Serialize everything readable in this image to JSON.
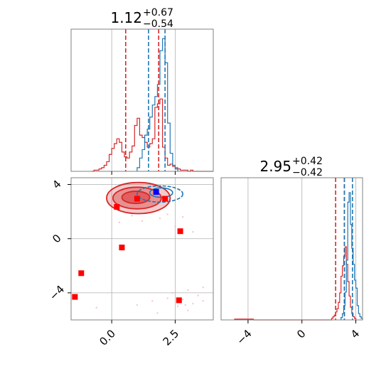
{
  "chart_data": {
    "type": "corner",
    "colors": {
      "series_red": "#d62728",
      "series_blue": "#1f77b4",
      "marker_red": "#ff0000",
      "marker_blue": "#0000ff",
      "grid": "#b0b0b0",
      "axes_frame": "#808080"
    },
    "panels": [
      {
        "id": "marginal-x",
        "type": "histogram",
        "title": {
          "value": "1.12",
          "sup": "+0.67",
          "sub": "−0.54"
        },
        "xlim": [
          -1.6,
          4.0
        ],
        "xticks": [
          0.0,
          2.5
        ],
        "xticklabels": [
          "0.0",
          "2.5"
        ],
        "grid": true,
        "red_quantile_lines": [
          0.55,
          1.85
        ],
        "blue_quantile_lines": [
          1.45,
          2.1
        ],
        "series": [
          {
            "name": "red",
            "color": "#d62728",
            "bin_edges": [
              -0.8,
              -0.7,
              -0.6,
              -0.5,
              -0.4,
              -0.3,
              -0.2,
              -0.1,
              0.0,
              0.1,
              0.2,
              0.3,
              0.4,
              0.5,
              0.6,
              0.7,
              0.8,
              0.9,
              1.0,
              1.1,
              1.2,
              1.3,
              1.4,
              1.5,
              1.6,
              1.7,
              1.8,
              1.9,
              2.0,
              2.1,
              2.2,
              2.3,
              2.4,
              2.5,
              2.6,
              2.7,
              2.8,
              2.9,
              3.0,
              3.1,
              3.2,
              3.3,
              3.4,
              3.5,
              3.6,
              3.7,
              3.8,
              3.9,
              4.0
            ],
            "counts": [
              0,
              1,
              1,
              2,
              3,
              5,
              8,
              14,
              19,
              23,
              27,
              24,
              16,
              12,
              11,
              16,
              21,
              38,
              44,
              30,
              28,
              24,
              20,
              23,
              27,
              53,
              56,
              60,
              20,
              11,
              5,
              6,
              4,
              3,
              2,
              1,
              1,
              1,
              0,
              1,
              0,
              0,
              0,
              0,
              0,
              0,
              0,
              0
            ]
          },
          {
            "name": "blue",
            "color": "#1f77b4",
            "bin_edges": [
              1.0,
              1.1,
              1.2,
              1.3,
              1.4,
              1.5,
              1.6,
              1.7,
              1.8,
              1.9,
              2.0,
              2.1,
              2.2,
              2.3,
              2.4,
              2.5,
              2.6
            ],
            "counts": [
              3,
              11,
              18,
              30,
              35,
              45,
              55,
              62,
              72,
              100,
              110,
              90,
              40,
              15,
              5,
              2
            ]
          }
        ]
      },
      {
        "id": "marginal-y",
        "type": "histogram",
        "title": {
          "value": "2.95",
          "sup": "+0.42",
          "sub": "−0.42"
        },
        "xlim": [
          -6.0,
          4.5
        ],
        "xticks": [
          -4,
          0,
          4
        ],
        "xticklabels": [
          "−4",
          "0",
          "4"
        ],
        "grid": true,
        "red_quantile_lines": [
          2.5,
          3.15
        ],
        "blue_quantile_lines": [
          3.15,
          3.75
        ],
        "series": [
          {
            "name": "red",
            "color": "#d62728",
            "bin_edges": [
              -5.0,
              -3.6,
              2.2,
              2.3,
              2.4,
              2.5,
              2.6,
              2.7,
              2.8,
              2.9,
              3.0,
              3.1,
              3.2,
              3.3,
              3.4,
              3.5,
              3.6,
              3.7,
              3.8,
              3.9,
              4.0
            ],
            "counts": [
              1,
              0,
              2,
              4,
              6,
              10,
              14,
              22,
              34,
              55,
              68,
              80,
              92,
              70,
              48,
              30,
              16,
              8,
              4,
              2
            ]
          },
          {
            "name": "blue",
            "color": "#1f77b4",
            "bin_edges": [
              2.9,
              3.0,
              3.1,
              3.2,
              3.3,
              3.4,
              3.5,
              3.6,
              3.7,
              3.8,
              3.9,
              4.0,
              4.1,
              4.2,
              4.3,
              4.4,
              4.5
            ],
            "counts": [
              3,
              8,
              18,
              35,
              75,
              148,
              160,
              120,
              90,
              70,
              50,
              40,
              18,
              8,
              4,
              2
            ]
          }
        ]
      },
      {
        "id": "joint",
        "type": "scatter-contour",
        "xlim": [
          -1.6,
          4.0
        ],
        "ylim": [
          -6.0,
          4.5
        ],
        "xticks": [
          0.0,
          2.5
        ],
        "xticklabels": [
          "0.0",
          "2.5"
        ],
        "yticks": [
          -4,
          0,
          4
        ],
        "yticklabels": [
          "−4",
          "0",
          "4"
        ],
        "grid": true,
        "contours": [
          {
            "series": "red",
            "level": "outer",
            "center": [
              1.05,
              3.0
            ],
            "radii": [
              1.25,
              1.15
            ],
            "alpha": 0.45
          },
          {
            "series": "red",
            "level": "middle",
            "center": [
              1.0,
              3.0
            ],
            "radii": [
              0.95,
              0.8
            ],
            "alpha": 0.65
          },
          {
            "series": "red",
            "level": "inner",
            "center": [
              0.95,
              3.05
            ],
            "radii": [
              0.55,
              0.45
            ],
            "alpha": 0.85
          },
          {
            "series": "blue",
            "level": "outer",
            "center": [
              1.9,
              3.3
            ],
            "radii": [
              0.9,
              0.6
            ],
            "alpha": 0.0
          },
          {
            "series": "blue",
            "level": "inner",
            "center": [
              1.95,
              3.4
            ],
            "radii": [
              0.45,
              0.35
            ],
            "alpha": 0.0
          }
        ],
        "faint_points": [
          [
            1.2,
            1.3
          ],
          [
            0.8,
            1.7
          ],
          [
            2.2,
            1.8
          ],
          [
            2.5,
            0.9
          ],
          [
            0.3,
            1.2
          ],
          [
            1.9,
            1.5
          ],
          [
            3.2,
            0.5
          ],
          [
            2.8,
            1.6
          ],
          [
            2.4,
            -4.0
          ],
          [
            2.8,
            -4.5
          ],
          [
            3.0,
            -3.8
          ],
          [
            3.2,
            -4.8
          ],
          [
            3.4,
            -4.2
          ],
          [
            2.6,
            -5.0
          ],
          [
            1.6,
            -4.6
          ],
          [
            1.0,
            -4.9
          ],
          [
            3.6,
            -3.6
          ],
          [
            3.0,
            -5.3
          ],
          [
            2.2,
            -4.4
          ],
          [
            -0.6,
            -5.1
          ],
          [
            3.6,
            -4.6
          ],
          [
            1.8,
            -5.5
          ],
          [
            2.9,
            -4.9
          ]
        ],
        "markers": [
          {
            "x": 0.2,
            "y": 2.35,
            "color": "#ff0000"
          },
          {
            "x": 1.0,
            "y": 2.95,
            "color": "#ff0000"
          },
          {
            "x": 2.1,
            "y": 2.95,
            "color": "#ff0000"
          },
          {
            "x": 2.7,
            "y": 0.55,
            "color": "#ff0000"
          },
          {
            "x": 0.4,
            "y": -0.65,
            "color": "#ff0000"
          },
          {
            "x": -1.2,
            "y": -2.55,
            "color": "#ff0000"
          },
          {
            "x": -1.45,
            "y": -4.3,
            "color": "#ff0000"
          },
          {
            "x": 2.65,
            "y": -4.55,
            "color": "#ff0000"
          },
          {
            "x": 1.75,
            "y": 3.45,
            "color": "#0000ff"
          }
        ]
      }
    ]
  }
}
